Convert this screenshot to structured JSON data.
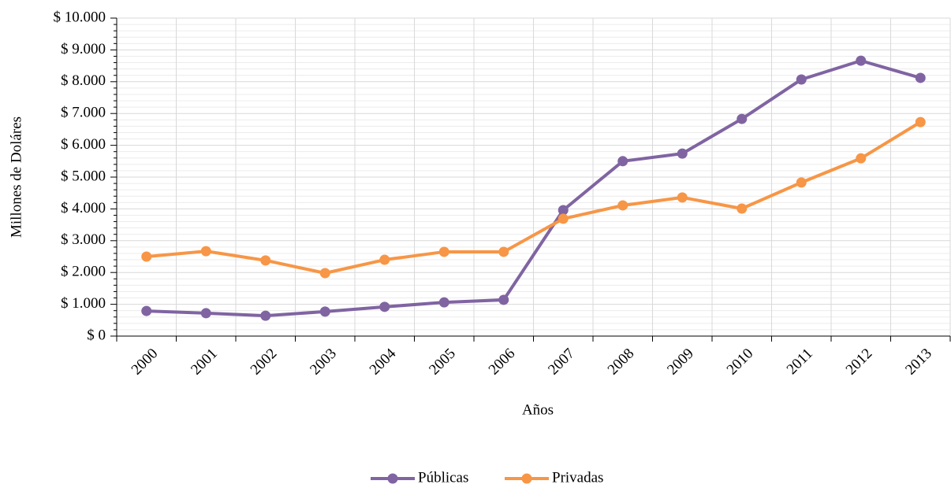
{
  "chart_data": {
    "type": "line",
    "x_label": "Años",
    "y_label": "Millones de Doláres",
    "categories": [
      "2000",
      "2001",
      "2002",
      "2003",
      "2004",
      "2005",
      "2006",
      "2007",
      "2008",
      "2009",
      "2010",
      "2011",
      "2012",
      "2013"
    ],
    "series": [
      {
        "name": "Públicas",
        "color": "#8064a2",
        "values": [
          790,
          720,
          640,
          770,
          920,
          1060,
          1140,
          3960,
          5500,
          5740,
          6830,
          8070,
          8660,
          8120
        ]
      },
      {
        "name": "Privadas",
        "color": "#f79646",
        "values": [
          2500,
          2670,
          2380,
          1980,
          2400,
          2650,
          2650,
          3690,
          4110,
          4360,
          4010,
          4830,
          5590,
          6730
        ]
      }
    ],
    "ylim": [
      0,
      10000
    ],
    "yticks": [
      {
        "value": 0,
        "label": "$ 0"
      },
      {
        "value": 1000,
        "label": "$ 1.000"
      },
      {
        "value": 2000,
        "label": "$ 2.000"
      },
      {
        "value": 3000,
        "label": "$ 3.000"
      },
      {
        "value": 4000,
        "label": "$ 4.000"
      },
      {
        "value": 5000,
        "label": "$ 5.000"
      },
      {
        "value": 6000,
        "label": "$ 6.000"
      },
      {
        "value": 7000,
        "label": "$ 7.000"
      },
      {
        "value": 8000,
        "label": "$ 8.000"
      },
      {
        "value": 9000,
        "label": "$ 9.000"
      },
      {
        "value": 10000,
        "label": "$ 10.000"
      }
    ],
    "grid": true,
    "legend": "bottom"
  }
}
